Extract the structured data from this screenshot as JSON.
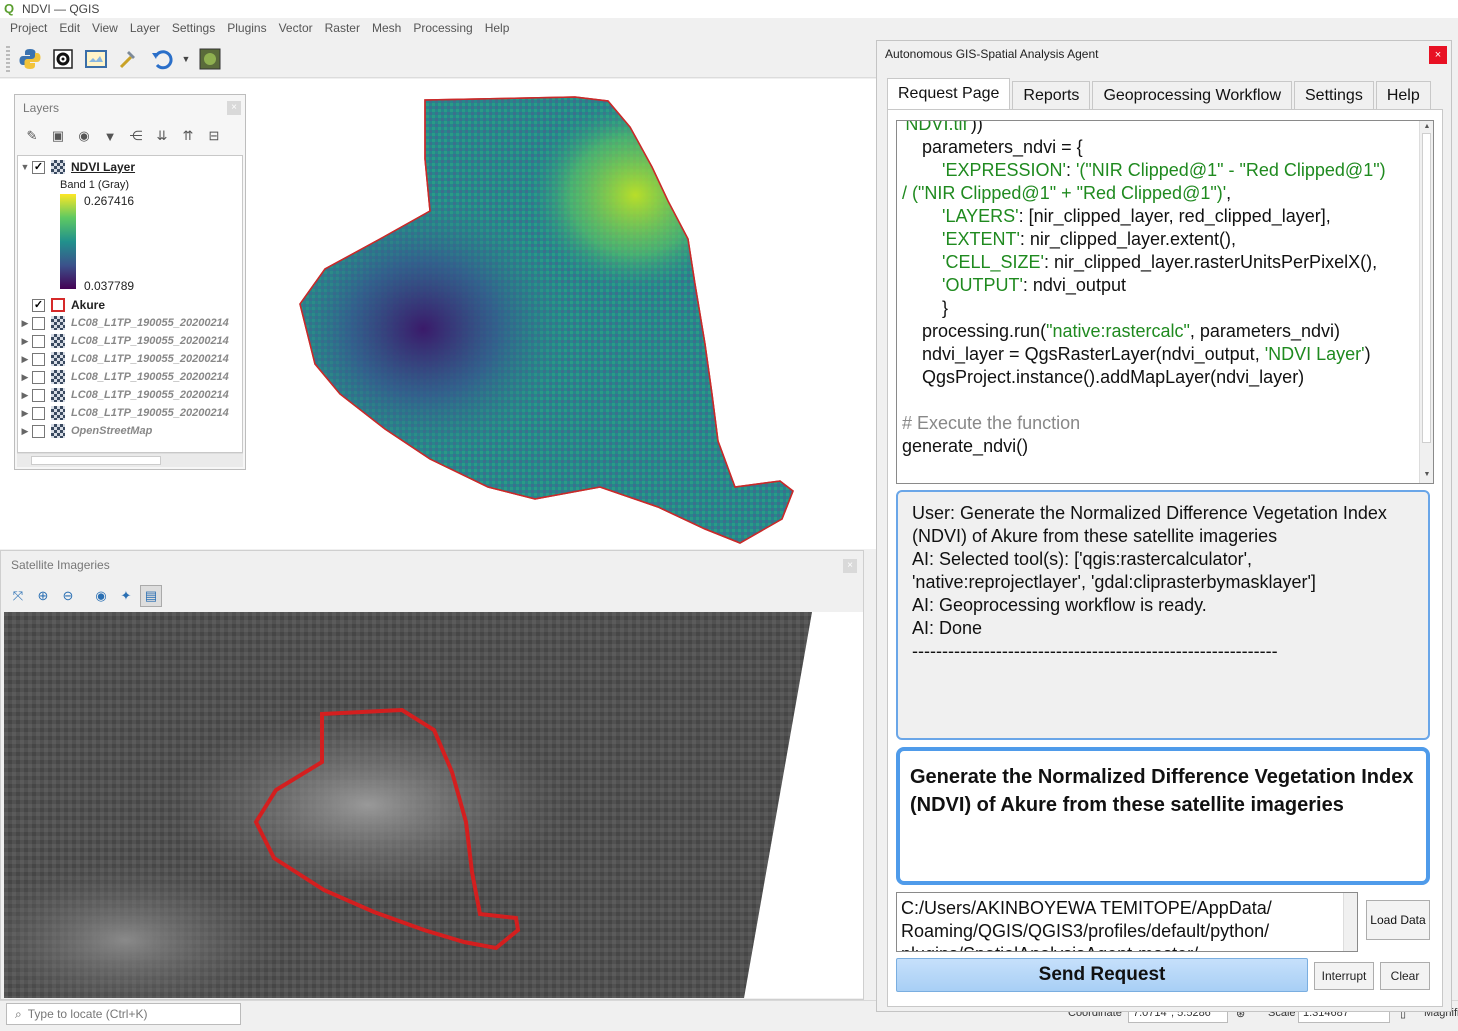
{
  "window": {
    "title": "NDVI — QGIS"
  },
  "menu": [
    "Project",
    "Edit",
    "View",
    "Layer",
    "Settings",
    "Plugins",
    "Vector",
    "Raster",
    "Mesh",
    "Processing",
    "Help"
  ],
  "layers_panel": {
    "title": "Layers",
    "legend_max": "0.267416",
    "legend_min": "0.037789",
    "items": [
      {
        "name": "NDVI Layer",
        "checked": "✓"
      },
      {
        "name": "Band 1 (Gray)"
      },
      {
        "name": "Akure",
        "checked": "✓"
      },
      {
        "name": "LC08_L1TP_190055_20200214"
      },
      {
        "name": "LC08_L1TP_190055_20200214"
      },
      {
        "name": "LC08_L1TP_190055_20200214"
      },
      {
        "name": "LC08_L1TP_190055_20200214"
      },
      {
        "name": "LC08_L1TP_190055_20200214"
      },
      {
        "name": "LC08_L1TP_190055_20200214"
      },
      {
        "name": "OpenStreetMap"
      }
    ]
  },
  "sat_panel": {
    "title": "Satellite Imageries"
  },
  "statusbar": {
    "locate_placeholder": "Type to locate (Ctrl+K)",
    "coordinate_label": "Coordinate",
    "coordinate_value": "7.0714°, 5.5286°",
    "scale_label": "Scale",
    "scale_value": "1:314687",
    "magnifier_label": "Magnifi"
  },
  "agent": {
    "title": "Autonomous GIS-Spatial Analysis Agent",
    "tabs": [
      "Request Page",
      "Reports",
      "Geoprocessing Workflow",
      "Settings",
      "Help"
    ],
    "code_lines": [
      {
        "t": "'NDVI.tif'))",
        "c": "str-partial"
      },
      {
        "t": "    parameters_ndvi = {"
      },
      {
        "pre": "        ",
        "s": "'EXPRESSION'",
        "mid": ": ",
        "s2": "'(\"NIR Clipped@1\" - \"Red Clipped@1\")"
      },
      {
        "s": "/ (\"NIR Clipped@1\" + \"Red Clipped@1\")'",
        "post": ","
      },
      {
        "pre": "        ",
        "s": "'LAYERS'",
        "post": ": [nir_clipped_layer, red_clipped_layer],"
      },
      {
        "pre": "        ",
        "s": "'EXTENT'",
        "post": ": nir_clipped_layer.extent(),"
      },
      {
        "pre": "        ",
        "s": "'CELL_SIZE'",
        "post": ": nir_clipped_layer.rasterUnitsPerPixelX(),"
      },
      {
        "pre": "        ",
        "s": "'OUTPUT'",
        "post": ": ndvi_output"
      },
      {
        "t": "        }"
      },
      {
        "t": "    processing.run(",
        "s": "\"native:rastercalc\"",
        "post": ", parameters_ndvi)"
      },
      {
        "t": "    ndvi_layer = QgsRasterLayer(ndvi_output, ",
        "s": "'NDVI Layer'",
        "post": ")"
      },
      {
        "t": "    QgsProject.instance().addMapLayer(ndvi_layer)"
      },
      {
        "t": ""
      },
      {
        "cmt": "# Execute the function"
      },
      {
        "t": "generate_ndvi()"
      }
    ],
    "chat": [
      "User: Generate the Normalized Difference Vegetation Index",
      "(NDVI) of Akure from these satellite imageries",
      "AI: Selected tool(s): ['qgis:rastercalculator',",
      "'native:reprojectlayer', 'gdal:cliprasterbymasklayer']",
      "AI: Geoprocessing workflow is ready.",
      "AI: Done",
      "-------------------------------------------------------------"
    ],
    "prompt": "Generate the Normalized Difference Vegetation Index (NDVI) of Akure from these satellite imageries",
    "path_lines": [
      "C:/Users/AKINBOYEWA TEMITOPE/AppData/",
      "Roaming/QGIS/QGIS3/profiles/default/python/",
      "plugins/SpatialAnalysisAgent-master/"
    ],
    "load_data": "Load Data",
    "send_request": "Send Request",
    "interrupt": "Interrupt",
    "clear": "Clear"
  },
  "colors": {
    "boundary": "#d62a2a",
    "accent": "#4f9bea",
    "ndvi_high": "#fde725",
    "ndvi_low": "#440154"
  },
  "icons": [
    "python-icon",
    "settings-gear-icon",
    "map-view-icon",
    "hammer-icon",
    "undo-icon",
    "plugin-icon"
  ]
}
